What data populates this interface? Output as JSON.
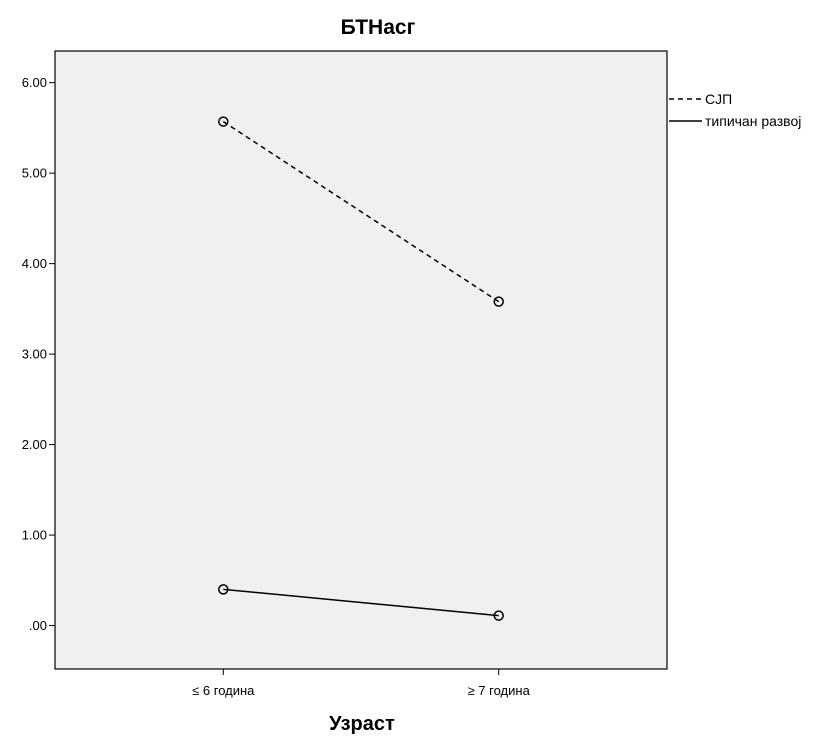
{
  "chart_data": {
    "type": "line",
    "title": "БТНасг",
    "xlabel": "Узраст",
    "ylabel": "",
    "categories": [
      "≤ 6 година",
      "≥ 7 година"
    ],
    "y_tick_labels": [
      ".00",
      "1.00",
      "2.00",
      "3.00",
      "4.00",
      "5.00",
      "6.00"
    ],
    "y_ticks": [
      0,
      1,
      2,
      3,
      4,
      5,
      6
    ],
    "ylim": [
      -0.48,
      6.35
    ],
    "grid": false,
    "legend_position": "right",
    "plot_background": "#f0f0f0",
    "series": [
      {
        "name": "СЈП",
        "values": [
          5.57,
          3.58
        ],
        "line_style": "dashed",
        "marker": "circle",
        "color": "#000000"
      },
      {
        "name": "типичан развој",
        "values": [
          0.4,
          0.11
        ],
        "line_style": "solid",
        "marker": "circle",
        "color": "#000000"
      }
    ]
  }
}
